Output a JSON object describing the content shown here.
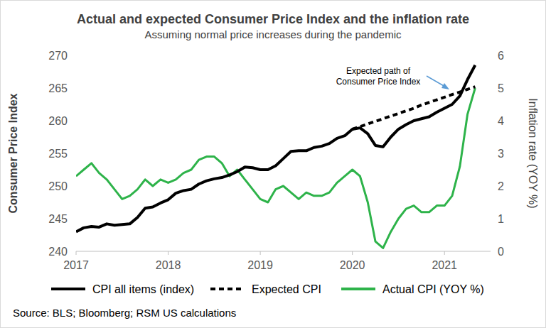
{
  "chart_data": {
    "type": "line",
    "title": "Actual and expected Consumer Price Index and the inflation rate",
    "subtitle": "Assuming normal price increases during the pandemic",
    "y_label": "Consumer Price Index",
    "y2_label": "Inflation rate (YOY %)",
    "annotation": [
      "Expected path of",
      "Consumer Price Index"
    ],
    "source": "Source: BLS; Bloomberg; RSM US calculations",
    "x": [
      2017,
      2017.083,
      2017.167,
      2017.25,
      2017.333,
      2017.417,
      2017.5,
      2017.583,
      2017.667,
      2017.75,
      2017.833,
      2017.917,
      2018,
      2018.083,
      2018.167,
      2018.25,
      2018.333,
      2018.417,
      2018.5,
      2018.583,
      2018.667,
      2018.75,
      2018.833,
      2018.917,
      2019,
      2019.083,
      2019.167,
      2019.25,
      2019.333,
      2019.417,
      2019.5,
      2019.583,
      2019.667,
      2019.75,
      2019.833,
      2019.917,
      2020,
      2020.083,
      2020.167,
      2020.25,
      2020.333,
      2020.417,
      2020.5,
      2020.583,
      2020.667,
      2020.75,
      2020.833,
      2020.917,
      2021,
      2021.083,
      2021.167,
      2021.25,
      2021.333
    ],
    "xlim": [
      2017,
      2021.5
    ],
    "xticks": [
      2017,
      2018,
      2019,
      2020,
      2021
    ],
    "ylim": [
      240,
      270
    ],
    "yticks": [
      240,
      245,
      250,
      255,
      260,
      265,
      270
    ],
    "y2lim": [
      0,
      6
    ],
    "y2ticks": [
      0,
      1,
      2,
      3,
      4,
      5,
      6
    ],
    "grid": false,
    "legend": "bottom",
    "series": [
      {
        "name": "CPI all items (index)",
        "color": "#000000",
        "line_style": "solid",
        "values": [
          243.0,
          243.6,
          243.8,
          243.7,
          244.2,
          244.0,
          244.1,
          244.2,
          245.2,
          246.6,
          246.8,
          247.4,
          247.9,
          248.9,
          249.3,
          249.5,
          250.3,
          250.8,
          251.1,
          251.3,
          251.7,
          252.2,
          252.9,
          252.8,
          252.5,
          252.5,
          253.1,
          254.2,
          255.3,
          255.4,
          255.4,
          255.9,
          256.1,
          256.5,
          257.3,
          257.7,
          258.7,
          258.9,
          258.0,
          256.2,
          256.0,
          257.5,
          258.7,
          259.4,
          260.0,
          260.3,
          260.6,
          261.3,
          261.9,
          262.5,
          263.8,
          266.3,
          268.5
        ]
      },
      {
        "name": "Expected CPI",
        "color": "#000000",
        "line_style": "dashed",
        "values": [
          null,
          null,
          null,
          null,
          null,
          null,
          null,
          null,
          null,
          null,
          null,
          null,
          null,
          null,
          null,
          null,
          null,
          null,
          null,
          null,
          null,
          null,
          null,
          null,
          null,
          null,
          null,
          null,
          null,
          null,
          null,
          null,
          null,
          null,
          null,
          null,
          258.7,
          259.1,
          259.5,
          259.9,
          260.3,
          260.7,
          261.1,
          261.5,
          261.9,
          262.4,
          262.8,
          263.2,
          263.6,
          264.0,
          264.4,
          264.8,
          265.2
        ]
      },
      {
        "name": "Actual CPI (YOY %)",
        "color": "#2eb34a",
        "line_style": "solid",
        "axis": "y2",
        "values": [
          2.3,
          2.5,
          2.7,
          2.4,
          2.2,
          1.9,
          1.6,
          1.7,
          1.9,
          2.2,
          2.0,
          2.2,
          2.1,
          2.2,
          2.4,
          2.5,
          2.8,
          2.9,
          2.9,
          2.7,
          2.3,
          2.5,
          2.2,
          1.9,
          1.6,
          1.5,
          1.9,
          2.0,
          1.8,
          1.6,
          1.8,
          1.7,
          1.7,
          1.8,
          2.1,
          2.3,
          2.5,
          2.3,
          1.5,
          0.3,
          0.1,
          0.6,
          1.0,
          1.3,
          1.4,
          1.2,
          1.2,
          1.4,
          1.4,
          1.7,
          2.6,
          4.2,
          5.0
        ]
      }
    ]
  }
}
